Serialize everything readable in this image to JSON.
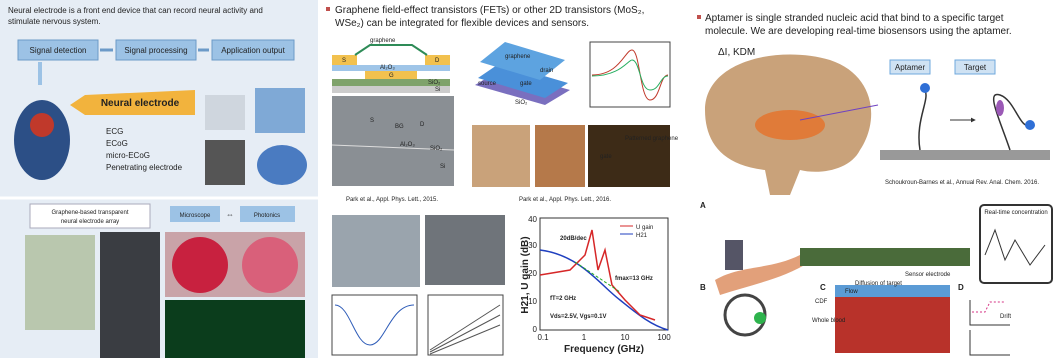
{
  "left": {
    "intro": [
      "Neural electrode is a front end device that can record neural activity and",
      "stimulate nervous system."
    ],
    "flow": [
      "Signal detection",
      "Signal processing",
      "Application output"
    ],
    "callout": "Neural electrode",
    "list": [
      "ECG",
      "ECoG",
      "micro-ECoG",
      "Penetrating electrode"
    ],
    "bottom_title": [
      "Graphene-based transparent",
      "neural electrode array"
    ],
    "bottom_labels": [
      "Microscope",
      "⇔",
      "Photonics"
    ]
  },
  "middle": {
    "bullet": [
      "Graphene field-effect transistors (FETs) or other 2D transistors (MoS₂,",
      "WSe₂) can be integrated for flexible devices and sensors."
    ],
    "schematic": [
      "graphene",
      "S",
      "D",
      "G",
      "Al₂O₃",
      "SiO₂",
      "Si"
    ],
    "sem": [
      "S",
      "BG",
      "D",
      "Al₂O₃",
      "SiO₂",
      "Si"
    ],
    "device": [
      "graphene",
      "source",
      "gate",
      "drain",
      "SiO₂"
    ],
    "photo_labels": [
      "Patterned graphene",
      "gate"
    ],
    "captions": [
      "Park et al., Appl. Phys. Lett., 2015.",
      "Park et al., Appl. Phys. Lett., 2016."
    ],
    "plot": {
      "ylabel": "H21, U gain (dB)",
      "xlabel": "Frequency (GHz)",
      "legend": [
        "U gain",
        "H21"
      ],
      "xticks": [
        "0.1",
        "1",
        "10",
        "100"
      ],
      "yticks": [
        "0",
        "10",
        "20",
        "30",
        "40"
      ],
      "annotations": [
        "20dB/dec",
        "fT=2 GHz",
        "fmax=13 GHz",
        "Vds=2.5V, Vgs=0.1V"
      ]
    }
  },
  "right": {
    "bullet": [
      "Aptamer is single stranded nucleic acid that bind to a specific target",
      "molecule. We are developing real-time biosensors using the aptamer."
    ],
    "brain_label": "ΔI, KDM",
    "diagram": [
      "Aptamer",
      "Target"
    ],
    "caption": "Schoukroun-Barnes et al., Annual Rev. Anal. Chem. 2016.",
    "panels": [
      "A",
      "B",
      "C",
      "D"
    ],
    "panel_labels": [
      "Real-time concentration",
      "Diffusion of target",
      "Sensor electrode",
      "Flow",
      "CDF",
      "Whole blood",
      "Drift"
    ]
  }
}
